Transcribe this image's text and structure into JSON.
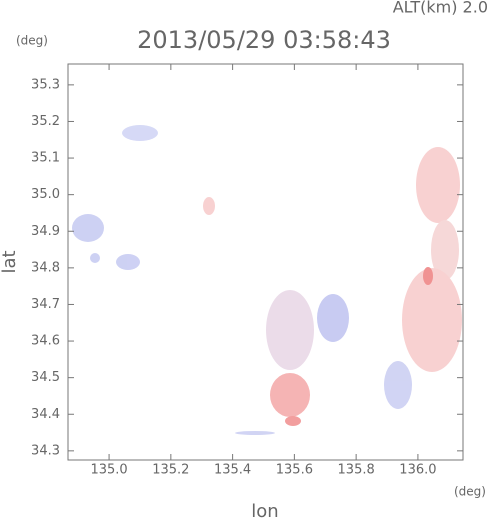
{
  "chart_data": {
    "type": "scatter",
    "title": "2013/05/29 03:58:43",
    "subtitle": "ALT(km) 2.0",
    "y_unit": "(deg)",
    "x_unit": "(deg)",
    "xlabel": "lon",
    "ylabel": "lat",
    "xlim": [
      134.867,
      136.146
    ],
    "ylim": [
      34.275,
      35.357
    ],
    "xticks": [
      {
        "value": 135,
        "label": "135.0"
      },
      135.2,
      135.4,
      135.6,
      135.8,
      {
        "value": 136,
        "label": "136.0"
      }
    ],
    "yticks": [
      34.3,
      34.4,
      34.5,
      34.6,
      34.7,
      34.8,
      34.9,
      {
        "value": 35,
        "label": "35.0"
      },
      35.1,
      35.2,
      35.3
    ]
  }
}
